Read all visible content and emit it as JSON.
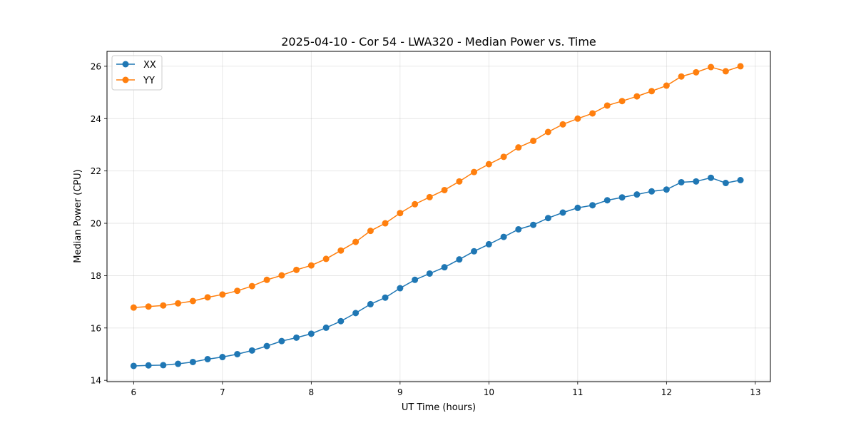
{
  "chart_data": {
    "type": "line",
    "title": "2025-04-10 - Cor 54 - LWA320 - Median Power vs. Time",
    "xlabel": "UT Time (hours)",
    "ylabel": "Median Power (CPU)",
    "xlim": [
      5.7,
      13.17
    ],
    "ylim": [
      13.95,
      26.57
    ],
    "xticks": [
      6,
      7,
      8,
      9,
      10,
      11,
      12,
      13
    ],
    "yticks": [
      14,
      16,
      18,
      20,
      22,
      24,
      26
    ],
    "grid": true,
    "legend_position": "upper-left",
    "x": [
      6.0,
      6.167,
      6.333,
      6.5,
      6.667,
      6.833,
      7.0,
      7.167,
      7.333,
      7.5,
      7.667,
      7.833,
      8.0,
      8.167,
      8.333,
      8.5,
      8.667,
      8.833,
      9.0,
      9.167,
      9.333,
      9.5,
      9.667,
      9.833,
      10.0,
      10.167,
      10.333,
      10.5,
      10.667,
      10.833,
      11.0,
      11.167,
      11.333,
      11.5,
      11.667,
      11.833,
      12.0,
      12.167,
      12.333,
      12.5,
      12.667,
      12.833
    ],
    "series": [
      {
        "name": "XX",
        "color": "#1f77b4",
        "values": [
          14.55,
          14.57,
          14.58,
          14.63,
          14.7,
          14.81,
          14.89,
          15.0,
          15.14,
          15.31,
          15.5,
          15.63,
          15.78,
          16.01,
          16.26,
          16.57,
          16.91,
          17.16,
          17.52,
          17.84,
          18.08,
          18.32,
          18.62,
          18.93,
          19.2,
          19.48,
          19.77,
          19.94,
          20.2,
          20.41,
          20.59,
          20.69,
          20.88,
          20.99,
          21.1,
          21.22,
          21.29,
          21.57,
          21.6,
          21.74,
          21.54,
          21.65
        ]
      },
      {
        "name": "YY",
        "color": "#ff7f0e",
        "values": [
          16.78,
          16.82,
          16.86,
          16.94,
          17.03,
          17.17,
          17.28,
          17.42,
          17.6,
          17.84,
          18.01,
          18.22,
          18.39,
          18.64,
          18.96,
          19.29,
          19.71,
          20.0,
          20.39,
          20.73,
          21.0,
          21.27,
          21.6,
          21.96,
          22.26,
          22.54,
          22.9,
          23.15,
          23.49,
          23.78,
          24.0,
          24.2,
          24.5,
          24.67,
          24.85,
          25.05,
          25.26,
          25.61,
          25.77,
          25.97,
          25.81,
          26.0
        ]
      }
    ]
  }
}
